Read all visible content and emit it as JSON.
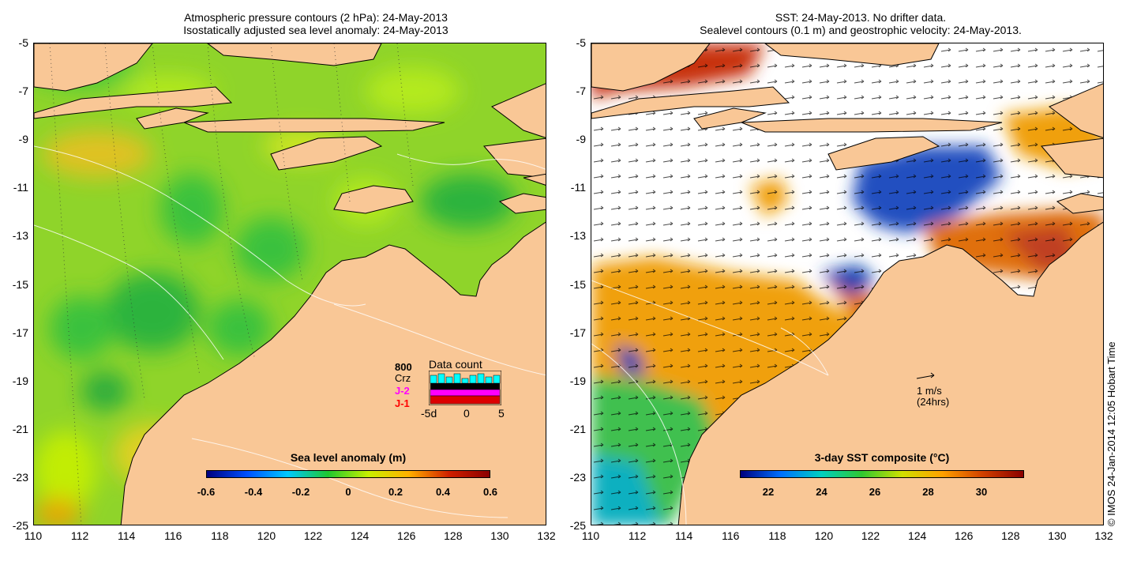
{
  "left_map": {
    "title_line1": "Atmospheric pressure contours (2 hPa): 24-May-2013",
    "title_line2": "Isostatically adjusted sea level anomaly: 24-May-2013",
    "colorbar_label": "Sea level anomaly (m)",
    "colorbar_ticks": [
      "-0.6",
      "-0.4",
      "-0.2",
      "0",
      "0.2",
      "0.4",
      "0.6"
    ],
    "colorbar_colors": [
      "#00007f",
      "#0050ff",
      "#00c8ff",
      "#1fc830",
      "#c8f000",
      "#ffb000",
      "#d02000",
      "#8b0000"
    ],
    "data_count": {
      "title": "Data count",
      "labels": [
        "800",
        "Crz",
        "J-2",
        "J-1"
      ],
      "label_colors": [
        "#00ffff",
        "#000000",
        "#ff00ff",
        "#ff0000"
      ],
      "axis_ticks": [
        "-5d",
        "0",
        "5"
      ]
    }
  },
  "right_map": {
    "title_line1": "SST: 24-May-2013. No drifter data.",
    "title_line2": "Sealevel contours (0.1 m) and geostrophic velocity: 24-May-2013.",
    "colorbar_label": "3-day SST composite (°C)",
    "colorbar_ticks": [
      "22",
      "24",
      "26",
      "28",
      "30"
    ],
    "colorbar_colors": [
      "#00007f",
      "#0070ff",
      "#00d0c0",
      "#30c830",
      "#d0e000",
      "#ffa000",
      "#d04000",
      "#8b0000"
    ],
    "velocity_scale": {
      "speed": "1 m/s",
      "duration": "(24hrs)"
    }
  },
  "axes": {
    "x_ticks": [
      "110",
      "112",
      "114",
      "116",
      "118",
      "120",
      "122",
      "124",
      "126",
      "128",
      "130",
      "132"
    ],
    "y_ticks": [
      "-5",
      "-7",
      "-9",
      "-11",
      "-13",
      "-15",
      "-17",
      "-19",
      "-21",
      "-23",
      "-25"
    ]
  },
  "colors": {
    "land": "#f9c796",
    "ocean_left": "#8fd42a"
  },
  "copyright": "© IMOS 24-Jan-2014 12:05 Hobart Time"
}
